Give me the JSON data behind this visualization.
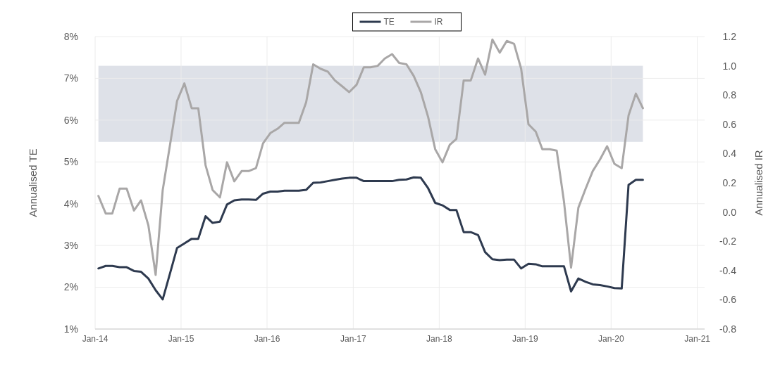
{
  "chart_data": {
    "type": "line",
    "ylabel": "Annualised TE",
    "y2label": "Annualised IR",
    "x": [
      "2014-01-15",
      "2014-02-15",
      "2014-03-15",
      "2014-04-15",
      "2014-05-15",
      "2014-06-15",
      "2014-07-15",
      "2014-08-15",
      "2014-09-15",
      "2014-10-15",
      "2014-11-15",
      "2014-12-15",
      "2015-01-15",
      "2015-02-15",
      "2015-03-15",
      "2015-04-15",
      "2015-05-15",
      "2015-06-15",
      "2015-07-15",
      "2015-08-15",
      "2015-09-15",
      "2015-10-15",
      "2015-11-15",
      "2015-12-15",
      "2016-01-15",
      "2016-02-15",
      "2016-03-15",
      "2016-04-15",
      "2016-05-15",
      "2016-06-15",
      "2016-07-15",
      "2016-08-15",
      "2016-09-15",
      "2016-10-15",
      "2016-11-15",
      "2016-12-15",
      "2017-01-15",
      "2017-02-15",
      "2017-03-15",
      "2017-04-15",
      "2017-05-15",
      "2017-06-15",
      "2017-07-15",
      "2017-08-15",
      "2017-09-15",
      "2017-10-15",
      "2017-11-15",
      "2017-12-15",
      "2018-01-15",
      "2018-02-15",
      "2018-03-15",
      "2018-04-15",
      "2018-05-15",
      "2018-06-15",
      "2018-07-15",
      "2018-08-15",
      "2018-09-15",
      "2018-10-15",
      "2018-11-15",
      "2018-12-15",
      "2019-01-15",
      "2019-02-15",
      "2019-03-15",
      "2019-04-15",
      "2019-05-15",
      "2019-06-15",
      "2019-07-15",
      "2019-08-15",
      "2019-09-15",
      "2019-10-15",
      "2019-11-15",
      "2019-12-15",
      "2020-01-15",
      "2020-02-15",
      "2020-03-15",
      "2020-04-15",
      "2020-05-15"
    ],
    "series": [
      {
        "name": "TE",
        "color": "#2e3a4f",
        "values": [
          2.45,
          2.51,
          2.51,
          2.48,
          2.48,
          2.39,
          2.37,
          2.21,
          1.93,
          1.71,
          2.33,
          2.94,
          3.05,
          3.16,
          3.16,
          3.7,
          3.54,
          3.57,
          3.98,
          4.08,
          4.1,
          4.1,
          4.09,
          4.24,
          4.29,
          4.29,
          4.31,
          4.31,
          4.31,
          4.33,
          4.5,
          4.51,
          4.54,
          4.57,
          4.6,
          4.62,
          4.62,
          4.54,
          4.54,
          4.54,
          4.54,
          4.54,
          4.57,
          4.58,
          4.63,
          4.62,
          4.37,
          4.02,
          3.96,
          3.85,
          3.85,
          3.32,
          3.32,
          3.25,
          2.84,
          2.67,
          2.65,
          2.66,
          2.66,
          2.45,
          2.56,
          2.55,
          2.5,
          2.5,
          2.5,
          2.5,
          1.9,
          2.21,
          2.13,
          2.07,
          2.05,
          2.02,
          1.98,
          1.97,
          4.45,
          4.57,
          4.57
        ]
      },
      {
        "name": "IR",
        "color": "#a9a7a7",
        "axis": "y2",
        "values": [
          0.11,
          -0.01,
          -0.01,
          0.16,
          0.16,
          0.01,
          0.08,
          -0.09,
          -0.43,
          0.15,
          0.46,
          0.76,
          0.88,
          0.71,
          0.71,
          0.32,
          0.15,
          0.1,
          0.34,
          0.21,
          0.28,
          0.28,
          0.3,
          0.47,
          0.54,
          0.57,
          0.61,
          0.61,
          0.61,
          0.75,
          1.01,
          0.98,
          0.96,
          0.9,
          0.86,
          0.82,
          0.87,
          0.99,
          0.99,
          1.0,
          1.05,
          1.08,
          1.02,
          1.01,
          0.93,
          0.82,
          0.65,
          0.43,
          0.34,
          0.46,
          0.5,
          0.9,
          0.9,
          1.05,
          0.94,
          1.18,
          1.09,
          1.17,
          1.15,
          0.98,
          0.6,
          0.55,
          0.43,
          0.43,
          0.42,
          0.07,
          -0.38,
          0.03,
          0.16,
          0.28,
          0.36,
          0.45,
          0.33,
          0.3,
          0.66,
          0.81,
          0.71
        ]
      }
    ],
    "xlim": [
      "2014-01-01",
      "2021-02-01"
    ],
    "xticks": [
      {
        "value": "2014-01-01",
        "label": "Jan-14"
      },
      {
        "value": "2015-01-01",
        "label": "Jan-15"
      },
      {
        "value": "2016-01-01",
        "label": "Jan-16"
      },
      {
        "value": "2017-01-01",
        "label": "Jan-17"
      },
      {
        "value": "2018-01-01",
        "label": "Jan-18"
      },
      {
        "value": "2019-01-01",
        "label": "Jan-19"
      },
      {
        "value": "2020-01-01",
        "label": "Jan-20"
      },
      {
        "value": "2021-01-01",
        "label": "Jan-21"
      }
    ],
    "ylim": [
      1,
      8
    ],
    "yticks": [
      {
        "value": 1,
        "label": "1%"
      },
      {
        "value": 2,
        "label": "2%"
      },
      {
        "value": 3,
        "label": "3%"
      },
      {
        "value": 4,
        "label": "4%"
      },
      {
        "value": 5,
        "label": "5%"
      },
      {
        "value": 6,
        "label": "6%"
      },
      {
        "value": 7,
        "label": "7%"
      },
      {
        "value": 8,
        "label": "8%"
      }
    ],
    "y2lim": [
      -0.8,
      1.2
    ],
    "y2ticks": [
      -0.8,
      -0.6,
      -0.4,
      -0.2,
      {
        "value": 0,
        "label": "0.0"
      },
      0.2,
      0.4,
      0.6,
      0.8,
      {
        "value": 1,
        "label": "1.0"
      },
      1.2
    ],
    "bands": [
      {
        "axis": "y2",
        "from": 0.48,
        "to": 1.0,
        "color": "#dee1e8"
      }
    ],
    "grid": true,
    "legend": "top",
    "line_style": "solid"
  }
}
